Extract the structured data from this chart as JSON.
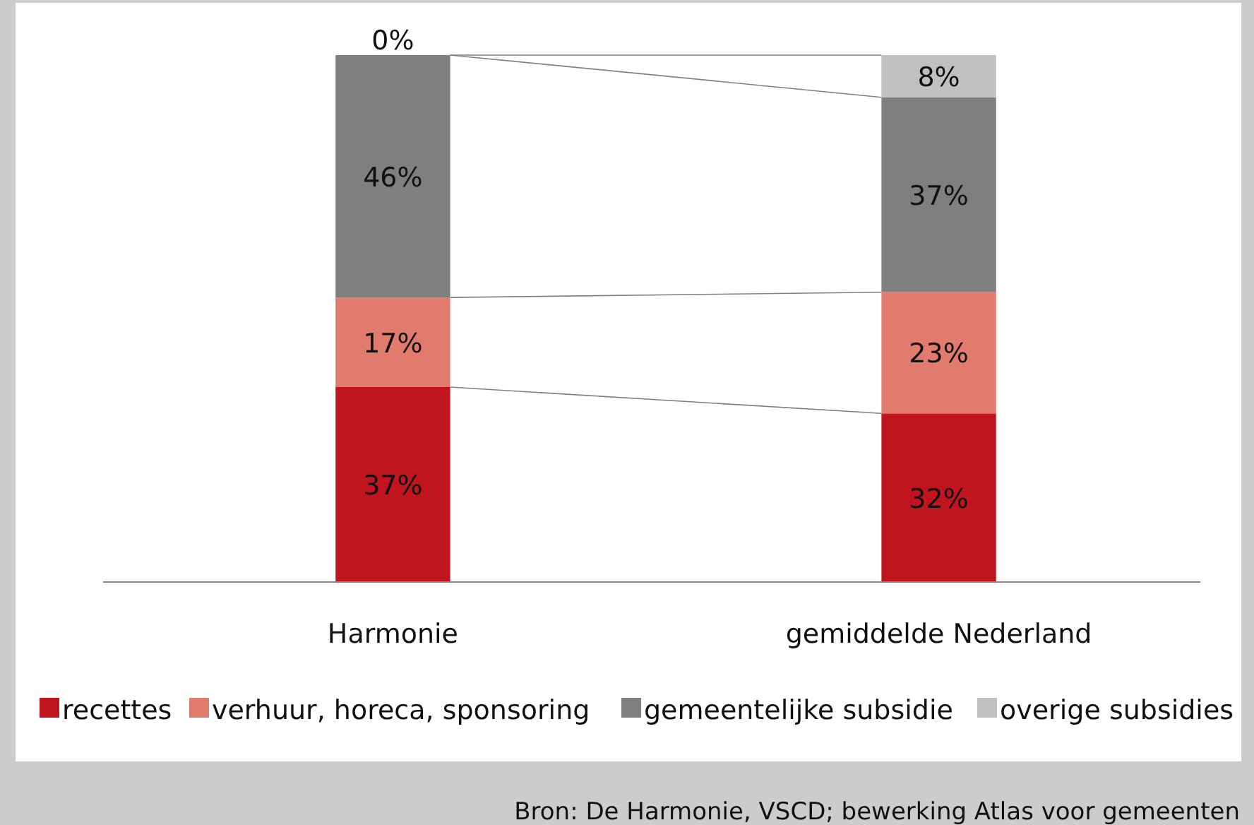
{
  "chart_data": {
    "type": "bar",
    "stacked": true,
    "categories": [
      "Harmonie",
      "gemiddelde Nederland"
    ],
    "series": [
      {
        "name": "recettes",
        "color": "#c0141e",
        "values": [
          37,
          32
        ],
        "value_labels": [
          "37%",
          "32%"
        ]
      },
      {
        "name": "verhuur, horeca, sponsoring",
        "color": "#e07b6e",
        "values": [
          17,
          23
        ],
        "value_labels": [
          "17%",
          "23%"
        ]
      },
      {
        "name": "gemeentelijke subsidie",
        "color": "#7f7f7f",
        "values": [
          46,
          37
        ],
        "value_labels": [
          "46%",
          "37%"
        ]
      },
      {
        "name": "overige subsidies",
        "color": "#c0c0c0",
        "values": [
          0,
          8
        ],
        "value_labels": [
          "0%",
          "8%"
        ]
      }
    ],
    "ylim": [
      0,
      100
    ],
    "tick_labels": "x",
    "legend": "bottom",
    "annotations": [
      "Bron: De Harmonie, VSCD; bewerking Atlas voor gemeenten"
    ]
  }
}
